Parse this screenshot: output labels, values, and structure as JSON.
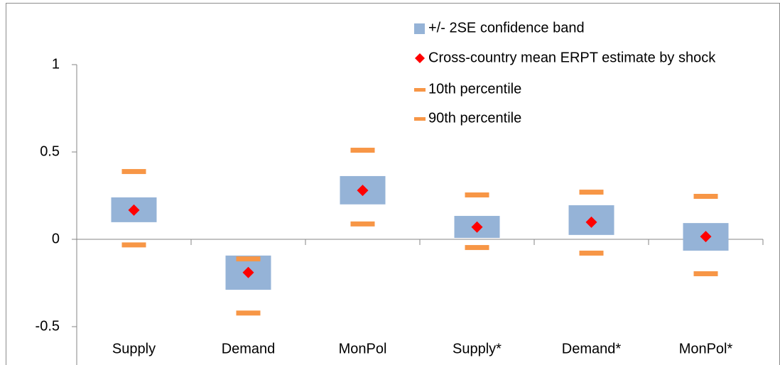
{
  "chart_data": {
    "type": "range",
    "categories": [
      "Supply",
      "Demand",
      "MonPol",
      "Supply*",
      "Demand*",
      "MonPol*"
    ],
    "series": [
      {
        "name": "+/- 2SE confidence band",
        "color": "#95b3d7",
        "values": [
          [
            0.098,
            0.24
          ],
          [
            -0.289,
            -0.093
          ],
          [
            0.2,
            0.362
          ],
          [
            0.008,
            0.134
          ],
          [
            0.025,
            0.195
          ],
          [
            -0.065,
            0.093
          ]
        ]
      },
      {
        "name": "Cross-country mean ERPT estimate by shock",
        "color": "#ff0000",
        "values": [
          0.167,
          -0.19,
          0.28,
          0.07,
          0.098,
          0.016
        ]
      },
      {
        "name": "10th percentile",
        "color": "#f79646",
        "values": [
          -0.03,
          -0.42,
          0.09,
          -0.045,
          -0.077,
          -0.195
        ]
      },
      {
        "name": "90th percentile",
        "color": "#f79646",
        "values": [
          0.39,
          -0.11,
          0.512,
          0.256,
          0.272,
          0.248
        ]
      }
    ],
    "ylim": [
      -0.5,
      1
    ],
    "yticks": [
      -0.5,
      0,
      0.5,
      1
    ],
    "legend": "top-right"
  }
}
